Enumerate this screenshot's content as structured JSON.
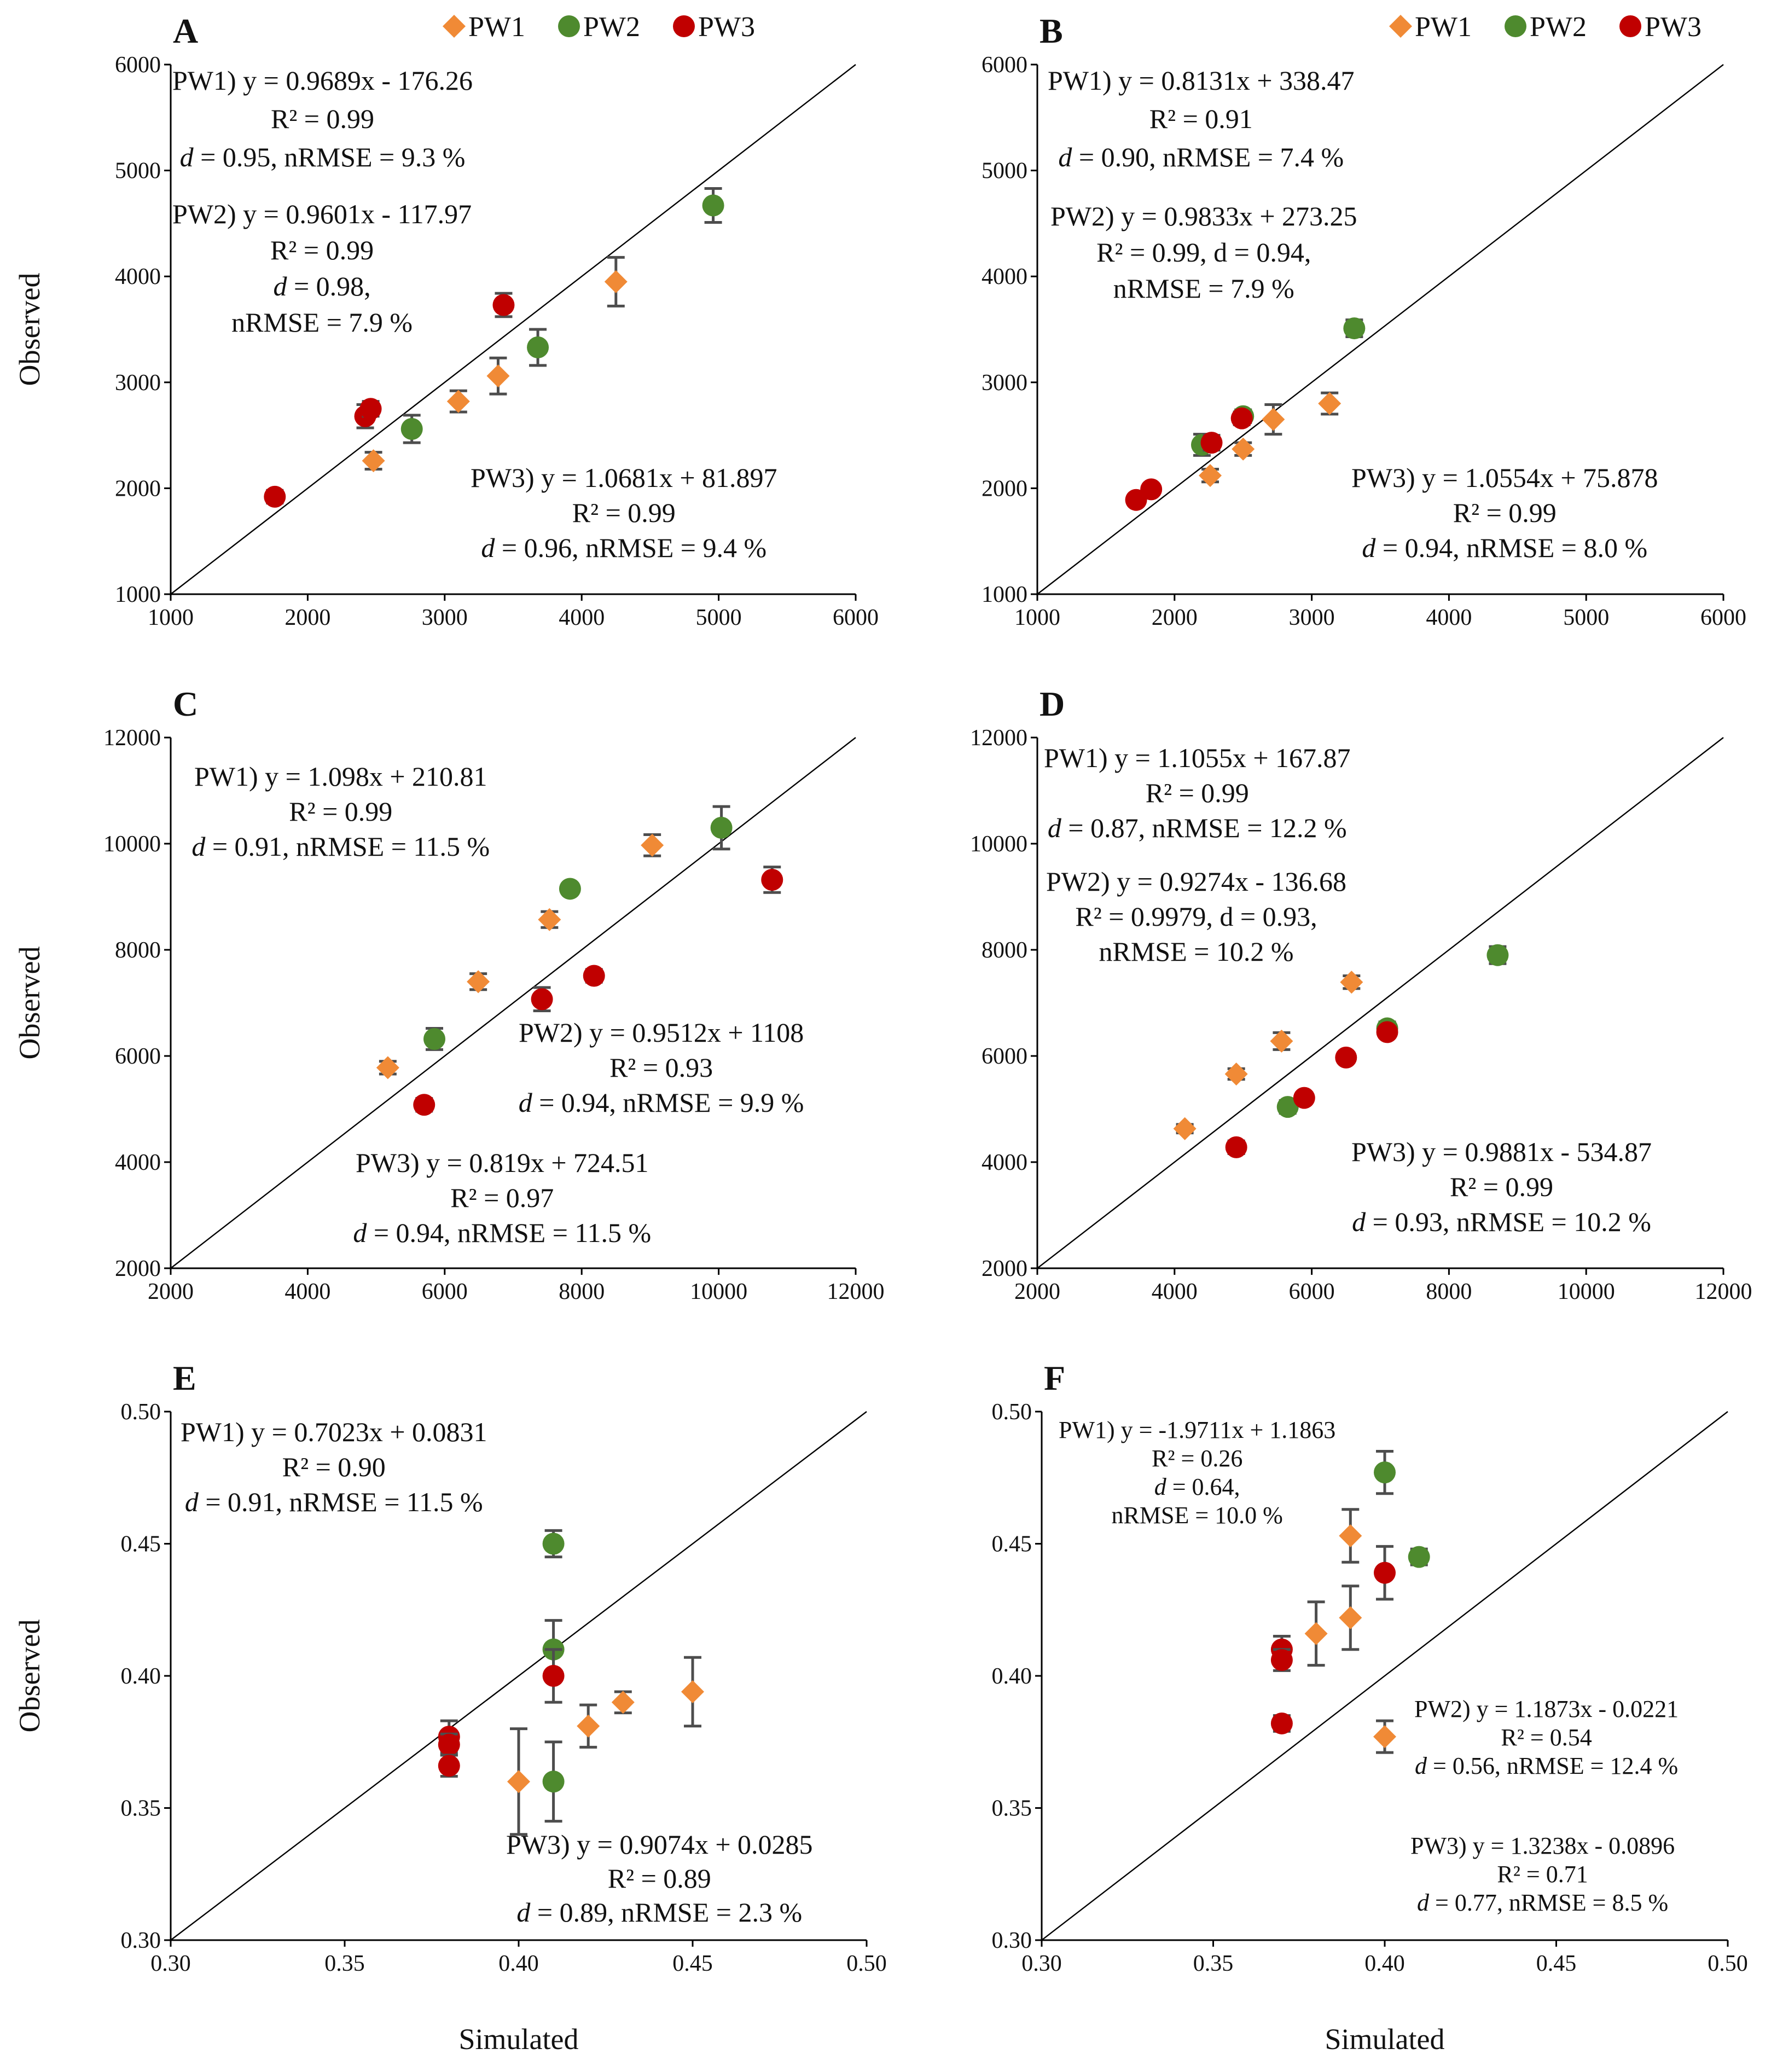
{
  "axis_titles": {
    "x": "Simulated",
    "y": "Observed"
  },
  "legend": [
    {
      "key": "PW1",
      "label": "PW1"
    },
    {
      "key": "PW2",
      "label": "PW2"
    },
    {
      "key": "PW3",
      "label": "PW3"
    }
  ],
  "colors": {
    "PW1": "#F08A36",
    "PW2": "#4E8A2E",
    "PW3": "#C00000",
    "errorbar": "#4D4D4D",
    "axis": "#000000",
    "line_1to1": "#000000"
  },
  "marker_shapes": {
    "PW1": "diamond",
    "PW2": "circle",
    "PW3": "circle"
  },
  "chart_data": [
    {
      "id": "A",
      "letter": "A",
      "type": "scatter",
      "show_legend": true,
      "xlim": [
        1000,
        6000
      ],
      "ylim": [
        1000,
        6000
      ],
      "xticks": [
        "1000",
        "2000",
        "3000",
        "4000",
        "5000",
        "6000"
      ],
      "yticks": [
        "1000",
        "2000",
        "3000",
        "4000",
        "5000",
        "6000"
      ],
      "show_ylabel": true,
      "show_xlabel": false,
      "series": [
        {
          "name": "PW1",
          "points": [
            [
              2480,
              2260,
              80
            ],
            [
              3100,
              2820,
              100
            ],
            [
              3390,
              3060,
              170
            ],
            [
              4250,
              3950,
              230
            ]
          ]
        },
        {
          "name": "PW2",
          "points": [
            [
              2760,
              2560,
              130
            ],
            [
              3680,
              3330,
              170
            ],
            [
              4960,
              4670,
              160
            ]
          ]
        },
        {
          "name": "PW3",
          "points": [
            [
              1760,
              1920,
              60
            ],
            [
              2420,
              2680,
              110
            ],
            [
              2460,
              2750,
              70
            ],
            [
              3430,
              3730,
              110
            ]
          ]
        }
      ],
      "annotations": [
        {
          "lines": [
            "PW1) y = 0.9689x  - 176.26",
            "R² = 0.99",
            "d = 0.95, nRMSE = 9.3 %"
          ]
        },
        {
          "lines": [
            "PW2) y = 0.9601x  - 117.97",
            "R² = 0.99",
            "d = 0.98,",
            "nRMSE = 7.9 %"
          ]
        },
        {
          "lines": [
            "PW3) y = 1.0681x  + 81.897",
            "R² = 0.99",
            "d = 0.96, nRMSE = 9.4 %"
          ]
        }
      ]
    },
    {
      "id": "B",
      "letter": "B",
      "type": "scatter",
      "show_legend": true,
      "xlim": [
        1000,
        6000
      ],
      "ylim": [
        1000,
        6000
      ],
      "xticks": [
        "1000",
        "2000",
        "3000",
        "4000",
        "5000",
        "6000"
      ],
      "yticks": [
        "1000",
        "2000",
        "3000",
        "4000",
        "5000",
        "6000"
      ],
      "show_ylabel": false,
      "show_xlabel": false,
      "series": [
        {
          "name": "PW1",
          "points": [
            [
              2260,
              2120,
              60
            ],
            [
              2500,
              2370,
              60
            ],
            [
              2720,
              2650,
              140
            ],
            [
              3130,
              2800,
              100
            ]
          ]
        },
        {
          "name": "PW2",
          "points": [
            [
              2200,
              2410,
              100
            ],
            [
              2500,
              2680,
              60
            ],
            [
              3310,
              3510,
              80
            ]
          ]
        },
        {
          "name": "PW3",
          "points": [
            [
              1720,
              1890,
              50
            ],
            [
              1830,
              1990,
              50
            ],
            [
              2270,
              2430,
              70
            ],
            [
              2490,
              2660,
              60
            ]
          ]
        }
      ],
      "annotations": [
        {
          "lines": [
            "PW1) y = 0.8131x  + 338.47",
            "R² = 0.91",
            "d = 0.90, nRMSE = 7.4 %"
          ]
        },
        {
          "lines": [
            "PW2) y = 0.9833x  + 273.25",
            "R² = 0.99, d = 0.94,",
            "nRMSE = 7.9 %"
          ]
        },
        {
          "lines": [
            "PW3) y = 1.0554x  + 75.878",
            "R² = 0.99",
            "d = 0.94, nRMSE = 8.0 %"
          ]
        }
      ]
    },
    {
      "id": "C",
      "letter": "C",
      "type": "scatter",
      "show_legend": false,
      "xlim": [
        2000,
        12000
      ],
      "ylim": [
        2000,
        12000
      ],
      "xticks": [
        "2000",
        "4000",
        "6000",
        "8000",
        "10000",
        "12000"
      ],
      "yticks": [
        "2000",
        "4000",
        "6000",
        "8000",
        "10000",
        "12000"
      ],
      "show_ylabel": true,
      "show_xlabel": false,
      "series": [
        {
          "name": "PW1",
          "points": [
            [
              5170,
              5780,
              120
            ],
            [
              6490,
              7400,
              150
            ],
            [
              7530,
              8570,
              150
            ],
            [
              9030,
              9970,
              200
            ]
          ]
        },
        {
          "name": "PW2",
          "points": [
            [
              5850,
              6320,
              200
            ],
            [
              7830,
              9150,
              100
            ],
            [
              10040,
              10300,
              400
            ]
          ]
        },
        {
          "name": "PW3",
          "points": [
            [
              5700,
              5080,
              120
            ],
            [
              7420,
              7070,
              220
            ],
            [
              8180,
              7510,
              120
            ],
            [
              10780,
              9320,
              240
            ]
          ]
        }
      ],
      "annotations": [
        {
          "lines": [
            "PW1) y = 1.098x + 210.81",
            "R² = 0.99",
            "d = 0.91, nRMSE = 11.5 %"
          ]
        },
        {
          "lines": [
            "PW2) y = 0.9512x  + 1108",
            "R² = 0.93",
            "d = 0.94, nRMSE = 9.9 %"
          ]
        },
        {
          "lines": [
            "PW3) y = 0.819x + 724.51",
            "R² = 0.97",
            "d = 0.94, nRMSE = 11.5 %"
          ]
        }
      ]
    },
    {
      "id": "D",
      "letter": "D",
      "type": "scatter",
      "show_legend": false,
      "xlim": [
        2000,
        12000
      ],
      "ylim": [
        2000,
        12000
      ],
      "xticks": [
        "2000",
        "4000",
        "6000",
        "8000",
        "10000",
        "12000"
      ],
      "yticks": [
        "2000",
        "4000",
        "6000",
        "8000",
        "10000",
        "12000"
      ],
      "show_ylabel": false,
      "show_xlabel": false,
      "series": [
        {
          "name": "PW1",
          "points": [
            [
              4150,
              4630,
              80
            ],
            [
              4900,
              5660,
              100
            ],
            [
              5560,
              6280,
              160
            ],
            [
              6580,
              7390,
              120
            ]
          ]
        },
        {
          "name": "PW2",
          "points": [
            [
              5650,
              5040,
              120
            ],
            [
              7100,
              6520,
              120
            ],
            [
              8710,
              7900,
              160
            ]
          ]
        },
        {
          "name": "PW3",
          "points": [
            [
              4900,
              4280,
              120
            ],
            [
              5890,
              5210,
              100
            ],
            [
              6500,
              5970,
              80
            ],
            [
              7100,
              6450,
              100
            ]
          ]
        }
      ],
      "annotations": [
        {
          "lines": [
            "PW1) y = 1.1055x  + 167.87",
            "R² = 0.99",
            "d = 0.87, nRMSE = 12.2 %"
          ]
        },
        {
          "lines": [
            "PW2) y = 0.9274x  - 136.68",
            "R² = 0.9979, d = 0.93,",
            "nRMSE = 10.2 %"
          ]
        },
        {
          "lines": [
            "PW3) y = 0.9881x  - 534.87",
            "R² = 0.99",
            "d = 0.93, nRMSE = 10.2 %"
          ]
        }
      ]
    },
    {
      "id": "E",
      "letter": "E",
      "type": "scatter",
      "show_legend": false,
      "xlim": [
        0.3,
        0.5
      ],
      "ylim": [
        0.3,
        0.5
      ],
      "xticks": [
        "0.30",
        "0.35",
        "0.40",
        "0.45",
        "0.50"
      ],
      "yticks": [
        "0.30",
        "0.35",
        "0.40",
        "0.45",
        "0.50"
      ],
      "show_ylabel": true,
      "show_xlabel": true,
      "series": [
        {
          "name": "PW1",
          "points": [
            [
              0.4,
              0.36,
              0.02
            ],
            [
              0.42,
              0.381,
              0.008
            ],
            [
              0.43,
              0.39,
              0.004
            ],
            [
              0.45,
              0.394,
              0.013
            ]
          ]
        },
        {
          "name": "PW2",
          "points": [
            [
              0.41,
              0.45,
              0.005
            ],
            [
              0.41,
              0.41,
              0.011
            ],
            [
              0.41,
              0.36,
              0.015
            ]
          ]
        },
        {
          "name": "PW3",
          "points": [
            [
              0.38,
              0.377,
              0.006
            ],
            [
              0.38,
              0.374,
              0.004
            ],
            [
              0.38,
              0.366,
              0.004
            ],
            [
              0.41,
              0.4,
              0.01
            ]
          ]
        }
      ],
      "annotations": [
        {
          "lines": [
            "PW1) y = 0.7023x  + 0.0831",
            "R² = 0.90",
            "d = 0.91, nRMSE = 11.5 %"
          ]
        },
        {
          "lines": [
            "PW3) y = 0.9074x + 0.0285",
            "R² = 0.89",
            "d = 0.89, nRMSE = 2.3 %"
          ]
        }
      ]
    },
    {
      "id": "F",
      "letter": "F",
      "type": "scatter",
      "show_legend": false,
      "xlim": [
        0.3,
        0.5
      ],
      "ylim": [
        0.3,
        0.5
      ],
      "xticks": [
        "0.30",
        "0.35",
        "0.40",
        "0.45",
        "0.50"
      ],
      "yticks": [
        "0.30",
        "0.35",
        "0.40",
        "0.45",
        "0.50"
      ],
      "show_ylabel": false,
      "show_xlabel": true,
      "series": [
        {
          "name": "PW1",
          "points": [
            [
              0.39,
              0.453,
              0.01
            ],
            [
              0.38,
              0.416,
              0.012
            ],
            [
              0.39,
              0.422,
              0.012
            ],
            [
              0.4,
              0.377,
              0.006
            ]
          ]
        },
        {
          "name": "PW2",
          "points": [
            [
              0.4,
              0.477,
              0.008
            ],
            [
              0.41,
              0.445,
              0.003
            ]
          ]
        },
        {
          "name": "PW3",
          "points": [
            [
              0.4,
              0.439,
              0.01
            ],
            [
              0.37,
              0.41,
              0.005
            ],
            [
              0.37,
              0.406,
              0.004
            ],
            [
              0.37,
              0.382,
              0.003
            ]
          ]
        }
      ],
      "annotations": [
        {
          "lines": [
            "PW1) y = -1.9711x  + 1.1863",
            "R² = 0.26",
            "d = 0.64,",
            "nRMSE = 10.0 %"
          ]
        },
        {
          "lines": [
            "PW2) y = 1.1873x  - 0.0221",
            "R² = 0.54",
            "d = 0.56, nRMSE = 12.4 %"
          ]
        },
        {
          "lines": [
            "PW3) y = 1.3238x  - 0.0896",
            "R² = 0.71",
            "d = 0.77, nRMSE = 8.5 %"
          ]
        }
      ]
    }
  ]
}
